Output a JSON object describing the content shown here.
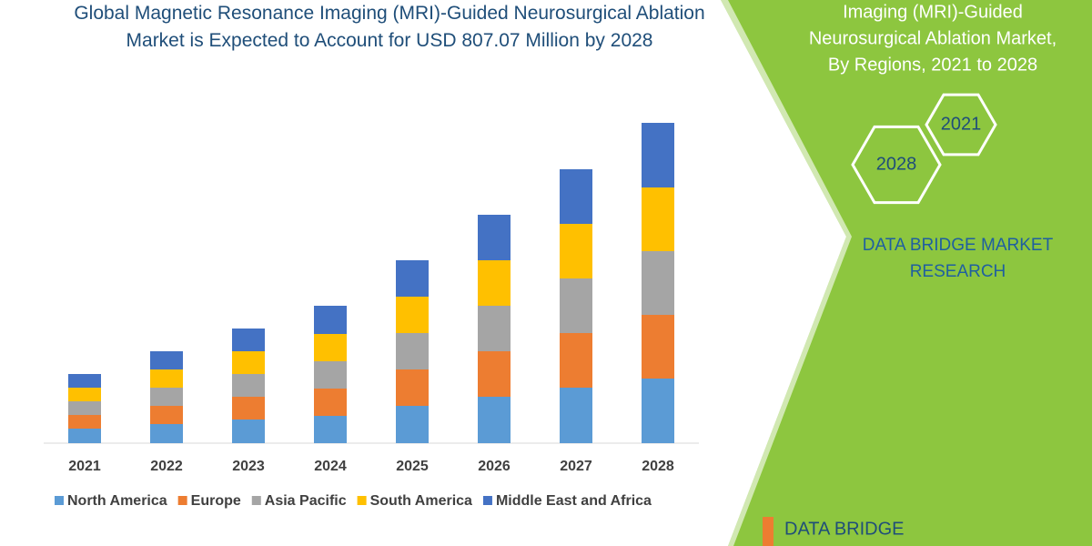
{
  "chart_data": {
    "type": "stacked_bar",
    "title": "Global Magnetic Resonance Imaging (MRI)-Guided Neurosurgical Ablation Market is Expected to Account for USD 807.07 Million by 2028",
    "categories": [
      "2021",
      "2022",
      "2023",
      "2024",
      "2025",
      "2026",
      "2027",
      "2028"
    ],
    "series": [
      {
        "name": "North America",
        "color": "#5b9bd5",
        "values": [
          16,
          21,
          26,
          30,
          41,
          51,
          61,
          71
        ]
      },
      {
        "name": "Europe",
        "color": "#ed7d31",
        "values": [
          15,
          20,
          25,
          30,
          40,
          50,
          60,
          70
        ]
      },
      {
        "name": "Asia Pacific",
        "color": "#a5a5a5",
        "values": [
          15,
          20,
          25,
          30,
          40,
          50,
          60,
          70
        ]
      },
      {
        "name": "South America",
        "color": "#ffc000",
        "values": [
          15,
          20,
          25,
          30,
          40,
          50,
          60,
          70
        ]
      },
      {
        "name": "Middle East and Africa",
        "color": "#4472c4",
        "values": [
          15,
          20,
          25,
          31,
          40,
          50,
          60,
          71
        ]
      }
    ],
    "ylim": [
      0,
      360
    ]
  },
  "side_panel": {
    "title_lines": [
      "Imaging (MRI)-Guided",
      "Neurosurgical Ablation Market,",
      "By Regions, 2021 to 2028"
    ],
    "hexagons": [
      "2021",
      "2028"
    ],
    "brand": "DATA BRIDGE MARKET RESEARCH",
    "logo_text": "DATA BRIDGE"
  }
}
